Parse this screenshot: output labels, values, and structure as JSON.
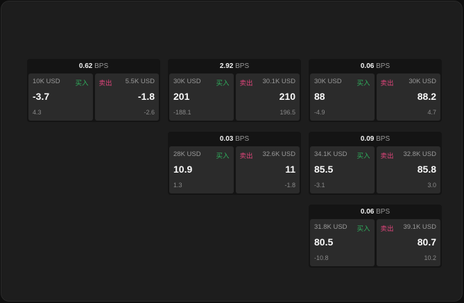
{
  "labels": {
    "buy": "买入",
    "sell": "卖出",
    "unit": "BPS"
  },
  "colors": {
    "buy": "#2fae5c",
    "sell": "#e0457b"
  },
  "cards": [
    {
      "slot": [
        0,
        0
      ],
      "spread": "0.62",
      "bid": {
        "size": "10K USD",
        "price": "-3.7",
        "change": "4.3"
      },
      "ask": {
        "size": "5.5K USD",
        "price": "-1.8",
        "change": "-2.6"
      }
    },
    {
      "slot": [
        0,
        1
      ],
      "spread": "2.92",
      "bid": {
        "size": "30K USD",
        "price": "201",
        "change": "-188.1"
      },
      "ask": {
        "size": "30.1K USD",
        "price": "210",
        "change": "196.5"
      }
    },
    {
      "slot": [
        0,
        2
      ],
      "spread": "0.06",
      "bid": {
        "size": "30K USD",
        "price": "88",
        "change": "-4.9"
      },
      "ask": {
        "size": "30K USD",
        "price": "88.2",
        "change": "4.7"
      }
    },
    {
      "slot": [
        1,
        1
      ],
      "spread": "0.03",
      "bid": {
        "size": "28K USD",
        "price": "10.9",
        "change": "1.3"
      },
      "ask": {
        "size": "32.6K USD",
        "price": "11",
        "change": "-1.8"
      }
    },
    {
      "slot": [
        1,
        2
      ],
      "spread": "0.09",
      "bid": {
        "size": "34.1K USD",
        "price": "85.5",
        "change": "-3.1"
      },
      "ask": {
        "size": "32.8K USD",
        "price": "85.8",
        "change": "3.0"
      }
    },
    {
      "slot": [
        2,
        2
      ],
      "spread": "0.06",
      "bid": {
        "size": "31.8K USD",
        "price": "80.5",
        "change": "-10.8"
      },
      "ask": {
        "size": "39.1K USD",
        "price": "80.7",
        "change": "10.2"
      }
    }
  ]
}
